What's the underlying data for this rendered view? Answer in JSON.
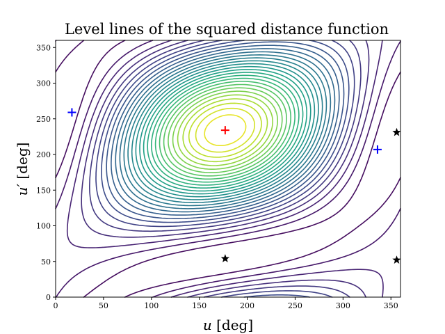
{
  "chart_data": {
    "type": "contour",
    "title": "Level lines of the squared distance function",
    "xlabel": "u [deg]",
    "xlabel_var": "u",
    "xlabel_unit": "[deg]",
    "ylabel": "u′ [deg]",
    "ylabel_var": "u′",
    "ylabel_unit": "[deg]",
    "xlim": [
      0,
      360
    ],
    "ylim": [
      0,
      360
    ],
    "xticks": [
      0,
      50,
      100,
      150,
      200,
      250,
      300,
      350
    ],
    "yticks": [
      0,
      50,
      100,
      150,
      200,
      250,
      300,
      350
    ],
    "colormap": "viridis",
    "grid": false,
    "markers": [
      {
        "kind": "plus",
        "color": "#0000ff",
        "x": 17,
        "y": 259
      },
      {
        "kind": "plus",
        "color": "#0000ff",
        "x": 336,
        "y": 207
      },
      {
        "kind": "plus",
        "color": "#ff0000",
        "x": 177,
        "y": 234
      },
      {
        "kind": "star",
        "color": "#000000",
        "x": 177,
        "y": 54
      },
      {
        "kind": "star",
        "color": "#000000",
        "x": 356,
        "y": 231
      },
      {
        "kind": "star",
        "color": "#000000",
        "x": 356,
        "y": 52
      }
    ]
  }
}
